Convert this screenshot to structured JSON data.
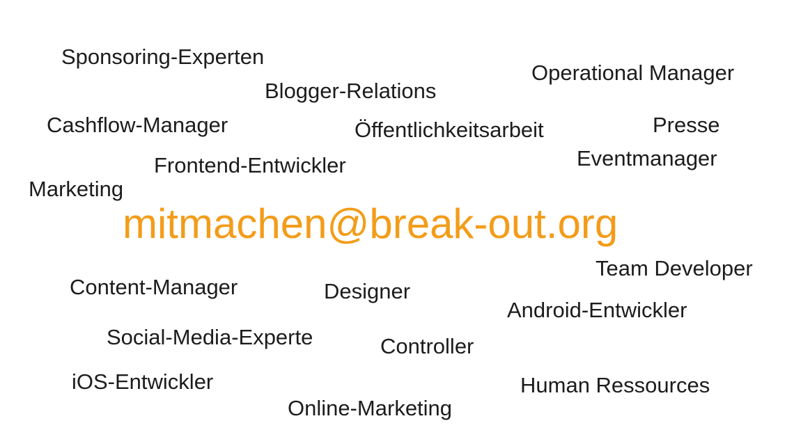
{
  "email": {
    "text": "mitmachen@break-out.org",
    "color": "#f39c19"
  },
  "roles": {
    "sponsoring": "Sponsoring-Experten",
    "operational": "Operational Manager",
    "blogger": "Blogger-Relations",
    "cashflow": "Cashflow-Manager",
    "oeffentlichkeit": "Öffentlichkeitsarbeit",
    "presse": "Presse",
    "eventmanager": "Eventmanager",
    "frontend": "Frontend-Entwickler",
    "marketing": "Marketing",
    "team_developer": "Team Developer",
    "content": "Content-Manager",
    "designer": "Designer",
    "android": "Android-Entwickler",
    "social_media": "Social-Media-Experte",
    "controller": "Controller",
    "ios": "iOS-Entwickler",
    "human_ressources": "Human Ressources",
    "online_marketing": "Online-Marketing"
  },
  "colors": {
    "text": "#1c1c1c",
    "background": "#ffffff"
  }
}
